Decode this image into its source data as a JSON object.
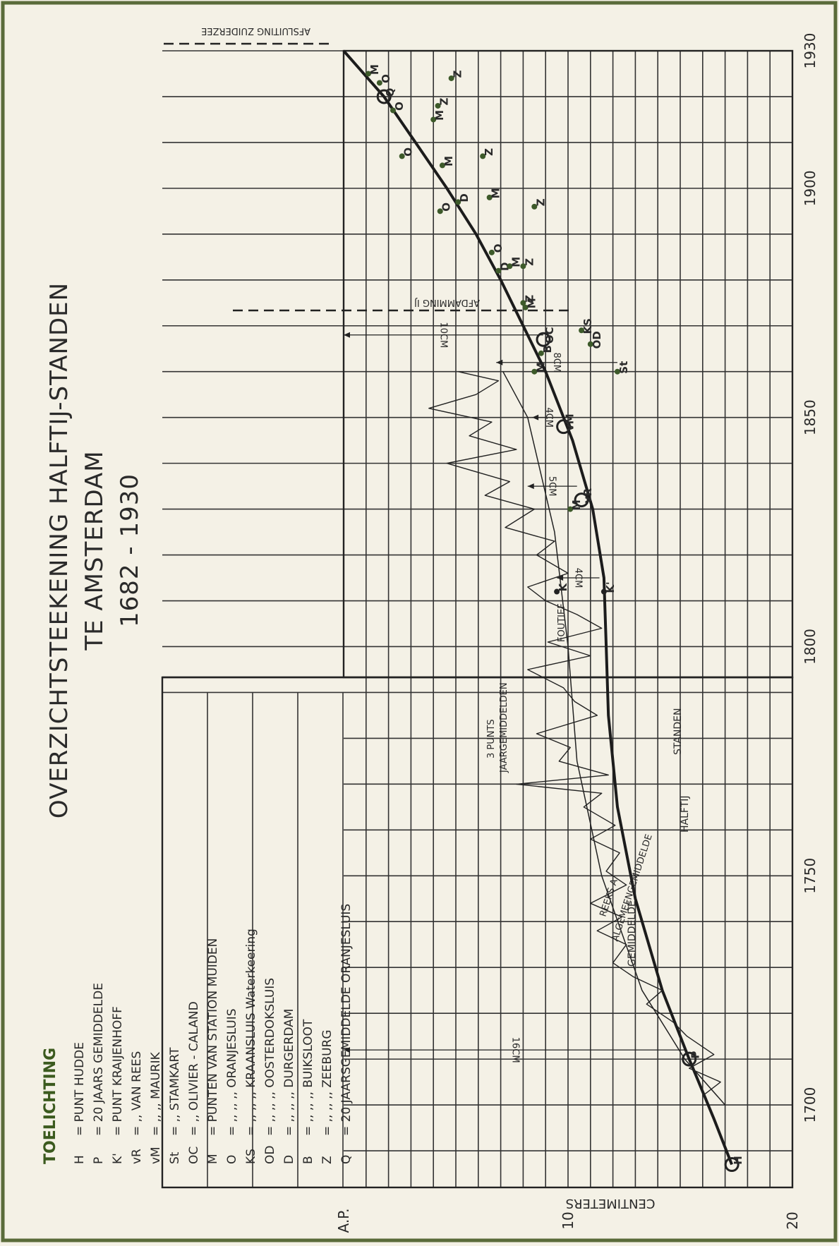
{
  "title": [
    "OVERZICHTSTEEKENING  HALFTIJ-STANDEN",
    "TE  AMSTERDAM",
    "1682 - 1930"
  ],
  "legend": {
    "heading": "TOELICHTING",
    "items": [
      {
        "key": "H",
        "text": "=  PUNT  HUDDE"
      },
      {
        "key": "P",
        "text": "=  20  JAARS GEMIDDELDE"
      },
      {
        "key": "K'",
        "text": "=  PUNT  KRAIJENHOFF"
      },
      {
        "key": "vR",
        "text": "=  ,,   VAN  REES"
      },
      {
        "key": "vM",
        "text": "=  ,,   ,,   MAURIK"
      },
      {
        "key": "St",
        "text": "=  ,,   STAMKART"
      },
      {
        "key": "OC",
        "text": "=  ,,   OLIVIER - CALAND"
      },
      {
        "key": "M",
        "text": "=  PUNTEN  VAN  STATION   MUIDEN"
      },
      {
        "key": "O",
        "text": "=  ,,   ,,   ,,   ORANJESLUIS"
      },
      {
        "key": "KS",
        "text": "=  ,,   ,,   ,,   KRAANSLUIS Waterkeering"
      },
      {
        "key": "OD",
        "text": "=  ,,   ,,   ,,   OOSTERDOKSLUIS"
      },
      {
        "key": "D",
        "text": "=  ,,   ,,   ,,   DURGERDAM"
      },
      {
        "key": "B",
        "text": "=  ,,   ,,   ,,   BUIKSLOOT"
      },
      {
        "key": "Z",
        "text": "=  ,,   ,,   ,,   ZEEBURG"
      },
      {
        "key": "Q",
        "text": "=  20  JAARSGEMIDDELDE  ORANJESLUIS"
      }
    ]
  },
  "annotations": {
    "afsluiting": "AFSLUITING  ZUIDERZEE",
    "afdamming": "AFDAMMING  IJ",
    "foutief": "FOUTIEF",
    "punts": [
      "3  PUNTS",
      "JAARGEMIDDELDEN"
    ],
    "reeks": [
      "REEKS  A",
      "ALGEMEENGEMIDDELDE"
    ],
    "gemiddelde": "GEMIDDELDE",
    "halftij": "HALFTIJ",
    "standen": "STANDEN",
    "offsets": [
      "16CM",
      "4CM",
      "5CM",
      "4CM",
      "8CM",
      "10CM"
    ]
  },
  "chart_data": {
    "type": "line",
    "xlabel": "",
    "ylabel": "CENTIMETERS",
    "xlim": [
      1682,
      1930
    ],
    "x_ticks": [
      "1700",
      "1750",
      "1800",
      "1850",
      "1900",
      "1930"
    ],
    "y_ticks": [
      "A.P.",
      "10",
      "20"
    ],
    "ylim_cm_below_AP": [
      0,
      20
    ],
    "grid": true,
    "series": [
      {
        "name": "GEMIDDELDE HALFTIJ STANDEN",
        "x": [
          1687,
          1697,
          1710,
          1725,
          1745,
          1765,
          1785,
          1800,
          1815,
          1830,
          1845,
          1860,
          1870,
          1880,
          1890,
          1900,
          1910,
          1920,
          1930
        ],
        "y": [
          17.3,
          16.5,
          15.4,
          14.2,
          13.0,
          12.2,
          11.8,
          11.7,
          11.6,
          11.1,
          10.2,
          9.0,
          8.0,
          7.0,
          5.9,
          4.6,
          3.2,
          1.8,
          0.0
        ]
      },
      {
        "name": "ALGEMEENGEMIDDELDE",
        "x": [
          1700,
          1710,
          1725,
          1750,
          1775,
          1800,
          1825,
          1850,
          1860
        ],
        "y": [
          17.0,
          15.2,
          13.3,
          11.5,
          10.4,
          10.0,
          9.4,
          8.2,
          7.1
        ]
      },
      {
        "name": "3 PUNTS JAARGEMIDDELDEN",
        "x": [
          1702,
          1705,
          1708,
          1711,
          1715,
          1718,
          1722,
          1725,
          1728,
          1731,
          1735,
          1738,
          1741,
          1744,
          1748,
          1751,
          1755,
          1758,
          1761,
          1765,
          1768,
          1770,
          1772,
          1775,
          1778,
          1781,
          1785,
          1788,
          1791,
          1795,
          1798,
          1801,
          1804,
          1807,
          1810,
          1813,
          1816,
          1820,
          1823,
          1826,
          1830,
          1833,
          1836,
          1840,
          1843,
          1846,
          1849,
          1852,
          1855,
          1858,
          1860
        ],
        "y": [
          16.0,
          16.8,
          15.4,
          16.5,
          15.3,
          14.7,
          13.5,
          14.2,
          12.9,
          12.0,
          12.6,
          11.3,
          12.4,
          11.0,
          12.6,
          11.7,
          12.3,
          11.0,
          12.1,
          10.7,
          11.5,
          7.7,
          11.8,
          9.6,
          10.1,
          8.6,
          11.3,
          10.3,
          9.8,
          8.2,
          11.0,
          9.1,
          11.5,
          10.4,
          9.0,
          8.2,
          10.0,
          8.6,
          9.4,
          7.2,
          8.5,
          6.3,
          7.4,
          4.6,
          7.7,
          5.6,
          6.6,
          3.8,
          5.9,
          6.9,
          5.1
        ]
      }
    ],
    "points": [
      {
        "label": "H",
        "x": 1687,
        "y": 17.3
      },
      {
        "label": "P",
        "x": 1710,
        "y": 15.4
      },
      {
        "label": "K'",
        "x": 1812,
        "y": 11.6
      },
      {
        "label": "K",
        "x": 1812,
        "y": 9.5
      },
      {
        "label": "vR",
        "x": 1832,
        "y": 10.6
      },
      {
        "label": "M",
        "x": 1830,
        "y": 10.1
      },
      {
        "label": "vM",
        "x": 1848,
        "y": 9.8
      },
      {
        "label": "St",
        "x": 1860,
        "y": 12.2
      },
      {
        "label": "M",
        "x": 1860,
        "y": 8.5
      },
      {
        "label": "B",
        "x": 1864,
        "y": 8.8
      },
      {
        "label": "OC",
        "x": 1867,
        "y": 8.9
      },
      {
        "label": "OD",
        "x": 1866,
        "y": 11.0
      },
      {
        "label": "KS",
        "x": 1869,
        "y": 10.6
      },
      {
        "label": "M",
        "x": 1874,
        "y": 8.1
      },
      {
        "label": "Z",
        "x": 1875,
        "y": 8.0
      },
      {
        "label": "D",
        "x": 1882,
        "y": 6.9
      },
      {
        "label": "M",
        "x": 1883,
        "y": 7.4
      },
      {
        "label": "Z",
        "x": 1883,
        "y": 8.0
      },
      {
        "label": "O",
        "x": 1886,
        "y": 6.6
      },
      {
        "label": "O",
        "x": 1895,
        "y": 4.3
      },
      {
        "label": "D",
        "x": 1897,
        "y": 5.1
      },
      {
        "label": "M",
        "x": 1898,
        "y": 6.5
      },
      {
        "label": "Z",
        "x": 1896,
        "y": 8.5
      },
      {
        "label": "M",
        "x": 1905,
        "y": 4.4
      },
      {
        "label": "Z",
        "x": 1907,
        "y": 6.2
      },
      {
        "label": "O",
        "x": 1907,
        "y": 2.6
      },
      {
        "label": "O",
        "x": 1917,
        "y": 2.2
      },
      {
        "label": "M",
        "x": 1915,
        "y": 4.0
      },
      {
        "label": "Z",
        "x": 1918,
        "y": 4.2
      },
      {
        "label": "Q",
        "x": 1920,
        "y": 1.8
      },
      {
        "label": "O",
        "x": 1923,
        "y": 1.6
      },
      {
        "label": "M",
        "x": 1925,
        "y": 1.1
      },
      {
        "label": "Z",
        "x": 1924,
        "y": 4.8
      }
    ]
  }
}
